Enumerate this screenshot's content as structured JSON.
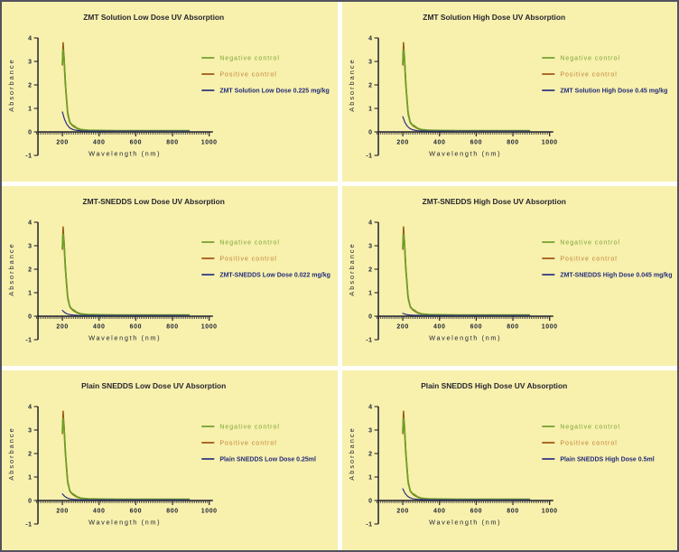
{
  "page": {
    "panel_background": "#f8f0ad",
    "frame_border_color": "#52525e",
    "gap_color": "#ffffff"
  },
  "colors": {
    "axis": "#23232e",
    "tick_text": "#1c2433",
    "title_text": "#26262e",
    "negative_line": "#6f9e28",
    "negative_text": "#7aa636",
    "positive_line": "#9c5210",
    "positive_text": "#c08038",
    "test_line": "#28317e",
    "test_text": "#232d7a"
  },
  "chart_data": [
    {
      "type": "line",
      "title": "ZMT Solution Low Dose UV Absorption",
      "xlabel": "Wavelength (nm)",
      "ylabel": "Absorbance",
      "xlim": [
        60,
        1040
      ],
      "ylim": [
        -1,
        4
      ],
      "x_ticks": [
        200,
        400,
        600,
        800,
        1000
      ],
      "y_ticks": [
        -1,
        0,
        1,
        2,
        3,
        4
      ],
      "grid": false,
      "legend_position": "right",
      "legend": [
        {
          "label": "Negative control",
          "text_color": "#7aa636",
          "line_color": "#6f9e28",
          "bold": false
        },
        {
          "label": "Positive control",
          "text_color": "#c08038",
          "line_color": "#9c5210",
          "bold": false
        },
        {
          "label": "ZMT Solution Low Dose 0.225 mg/kg",
          "text_color": "#232d7a",
          "line_color": "#28317e",
          "bold": true
        }
      ],
      "series": [
        {
          "name": "Positive control",
          "color": "#9c5210",
          "width": 1.5,
          "x": [
            200,
            204,
            210,
            218,
            230,
            242,
            254,
            265,
            283,
            303,
            345,
            410,
            510,
            610,
            710,
            810,
            890
          ],
          "y": [
            2.85,
            3.8,
            3.05,
            1.85,
            0.72,
            0.38,
            0.27,
            0.21,
            0.13,
            0.09,
            0.06,
            0.05,
            0.04,
            0.04,
            0.04,
            0.04,
            0.04
          ]
        },
        {
          "name": "Negative control",
          "color": "#6f9e28",
          "width": 1.8,
          "x": [
            200,
            203,
            208,
            216,
            228,
            240,
            252,
            262,
            280,
            300,
            340,
            400,
            500,
            600,
            700,
            800,
            890
          ],
          "y": [
            2.9,
            3.5,
            3.28,
            2.1,
            0.85,
            0.42,
            0.3,
            0.26,
            0.16,
            0.1,
            0.07,
            0.06,
            0.05,
            0.05,
            0.05,
            0.05,
            0.05
          ]
        },
        {
          "name": "ZMT Solution Low Dose 0.225 mg/kg",
          "color": "#28317e",
          "width": 1.2,
          "x": [
            200,
            212,
            225,
            240,
            258,
            280,
            310,
            360,
            450,
            560,
            680,
            800,
            890
          ],
          "y": [
            0.85,
            0.53,
            0.31,
            0.17,
            0.1,
            0.06,
            0.04,
            0.03,
            0.03,
            0.03,
            0.03,
            0.03,
            0.03
          ]
        }
      ]
    },
    {
      "type": "line",
      "title": "ZMT Solution High Dose UV Absorption",
      "xlabel": "Wavelength (nm)",
      "ylabel": "Absorbance",
      "xlim": [
        60,
        1040
      ],
      "ylim": [
        -1,
        4
      ],
      "x_ticks": [
        200,
        400,
        600,
        800,
        1000
      ],
      "y_ticks": [
        -1,
        0,
        1,
        2,
        3,
        4
      ],
      "grid": false,
      "legend_position": "right",
      "legend": [
        {
          "label": "Negative control",
          "text_color": "#7aa636",
          "line_color": "#6f9e28",
          "bold": false
        },
        {
          "label": "Positive control",
          "text_color": "#c08038",
          "line_color": "#9c5210",
          "bold": false
        },
        {
          "label": "ZMT Solution High Dose 0.45 mg/kg",
          "text_color": "#232d7a",
          "line_color": "#28317e",
          "bold": true
        }
      ],
      "series": [
        {
          "name": "Positive control",
          "color": "#9c5210",
          "width": 1.5,
          "x": [
            200,
            204,
            210,
            218,
            230,
            242,
            254,
            265,
            283,
            303,
            345,
            410,
            510,
            610,
            710,
            810,
            890
          ],
          "y": [
            2.85,
            3.8,
            3.05,
            1.85,
            0.72,
            0.38,
            0.27,
            0.21,
            0.13,
            0.09,
            0.06,
            0.05,
            0.04,
            0.04,
            0.04,
            0.04,
            0.04
          ]
        },
        {
          "name": "Negative control",
          "color": "#6f9e28",
          "width": 1.8,
          "x": [
            200,
            203,
            208,
            216,
            228,
            240,
            252,
            262,
            280,
            300,
            340,
            400,
            500,
            600,
            700,
            800,
            890
          ],
          "y": [
            2.9,
            3.5,
            3.28,
            2.1,
            0.85,
            0.42,
            0.3,
            0.26,
            0.16,
            0.1,
            0.07,
            0.06,
            0.05,
            0.05,
            0.05,
            0.05,
            0.05
          ]
        },
        {
          "name": "ZMT Solution High Dose 0.45 mg/kg",
          "color": "#28317e",
          "width": 1.2,
          "x": [
            200,
            212,
            225,
            240,
            258,
            280,
            310,
            360,
            450,
            560,
            680,
            800,
            890
          ],
          "y": [
            0.65,
            0.4,
            0.24,
            0.14,
            0.08,
            0.05,
            0.04,
            0.03,
            0.03,
            0.03,
            0.03,
            0.03,
            0.03
          ]
        }
      ]
    },
    {
      "type": "line",
      "title": "ZMT-SNEDDS Low Dose UV Absorption",
      "xlabel": "Wavelength (nm)",
      "ylabel": "Absorbance",
      "xlim": [
        60,
        1040
      ],
      "ylim": [
        -1,
        4
      ],
      "x_ticks": [
        200,
        400,
        600,
        800,
        1000
      ],
      "y_ticks": [
        -1,
        0,
        1,
        2,
        3,
        4
      ],
      "grid": false,
      "legend_position": "right",
      "legend": [
        {
          "label": "Negative control",
          "text_color": "#7aa636",
          "line_color": "#6f9e28",
          "bold": false
        },
        {
          "label": "Positive control",
          "text_color": "#c08038",
          "line_color": "#9c5210",
          "bold": false
        },
        {
          "label": "ZMT-SNEDDS Low Dose 0.022 mg/kg",
          "text_color": "#232d7a",
          "line_color": "#28317e",
          "bold": true
        }
      ],
      "series": [
        {
          "name": "Positive control",
          "color": "#9c5210",
          "width": 1.5,
          "x": [
            200,
            204,
            210,
            218,
            230,
            242,
            254,
            265,
            283,
            303,
            345,
            410,
            510,
            610,
            710,
            810,
            890
          ],
          "y": [
            2.85,
            3.8,
            3.05,
            1.85,
            0.72,
            0.38,
            0.27,
            0.21,
            0.13,
            0.09,
            0.06,
            0.05,
            0.04,
            0.04,
            0.04,
            0.04,
            0.04
          ]
        },
        {
          "name": "Negative control",
          "color": "#6f9e28",
          "width": 1.8,
          "x": [
            200,
            203,
            208,
            216,
            228,
            240,
            252,
            262,
            280,
            300,
            340,
            400,
            500,
            600,
            700,
            800,
            890
          ],
          "y": [
            2.9,
            3.5,
            3.28,
            2.1,
            0.85,
            0.42,
            0.3,
            0.26,
            0.16,
            0.1,
            0.07,
            0.06,
            0.05,
            0.05,
            0.05,
            0.05,
            0.05
          ]
        },
        {
          "name": "ZMT-SNEDDS Low Dose 0.022 mg/kg",
          "color": "#28317e",
          "width": 1.2,
          "x": [
            200,
            212,
            225,
            240,
            258,
            280,
            310,
            360,
            450,
            560,
            680,
            800,
            890
          ],
          "y": [
            0.25,
            0.16,
            0.1,
            0.07,
            0.05,
            0.04,
            0.03,
            0.03,
            0.03,
            0.03,
            0.03,
            0.03,
            0.03
          ]
        }
      ]
    },
    {
      "type": "line",
      "title": "ZMT-SNEDDS High Dose UV Absorption",
      "xlabel": "Wavelength (nm)",
      "ylabel": "Absorbance",
      "xlim": [
        60,
        1040
      ],
      "ylim": [
        -1,
        4
      ],
      "x_ticks": [
        200,
        400,
        600,
        800,
        1000
      ],
      "y_ticks": [
        -1,
        0,
        1,
        2,
        3,
        4
      ],
      "grid": false,
      "legend_position": "right",
      "legend": [
        {
          "label": "Negative control",
          "text_color": "#7aa636",
          "line_color": "#6f9e28",
          "bold": false
        },
        {
          "label": "Positive control",
          "text_color": "#c08038",
          "line_color": "#9c5210",
          "bold": false
        },
        {
          "label": "ZMT-SNEDDS High Dose 0.045 mg/kg",
          "text_color": "#232d7a",
          "line_color": "#28317e",
          "bold": true
        }
      ],
      "series": [
        {
          "name": "Positive control",
          "color": "#9c5210",
          "width": 1.5,
          "x": [
            200,
            204,
            210,
            218,
            230,
            242,
            254,
            265,
            283,
            303,
            345,
            410,
            510,
            610,
            710,
            810,
            890
          ],
          "y": [
            2.85,
            3.8,
            3.05,
            1.85,
            0.72,
            0.38,
            0.27,
            0.21,
            0.13,
            0.09,
            0.06,
            0.05,
            0.04,
            0.04,
            0.04,
            0.04,
            0.04
          ]
        },
        {
          "name": "Negative control",
          "color": "#6f9e28",
          "width": 1.8,
          "x": [
            200,
            203,
            208,
            216,
            228,
            240,
            252,
            262,
            280,
            300,
            340,
            400,
            500,
            600,
            700,
            800,
            890
          ],
          "y": [
            2.9,
            3.5,
            3.28,
            2.1,
            0.85,
            0.42,
            0.3,
            0.26,
            0.16,
            0.1,
            0.07,
            0.06,
            0.05,
            0.05,
            0.05,
            0.05,
            0.05
          ]
        },
        {
          "name": "ZMT-SNEDDS High Dose 0.045 mg/kg",
          "color": "#28317e",
          "width": 1.2,
          "x": [
            200,
            212,
            225,
            240,
            258,
            280,
            310,
            360,
            450,
            560,
            680,
            800,
            890
          ],
          "y": [
            0.12,
            0.09,
            0.06,
            0.05,
            0.04,
            0.04,
            0.03,
            0.03,
            0.03,
            0.03,
            0.03,
            0.03,
            0.03
          ]
        }
      ]
    },
    {
      "type": "line",
      "title": "Plain SNEDDS Low Dose UV Absorption",
      "xlabel": "Wavelength (nm)",
      "ylabel": "Absorbance",
      "xlim": [
        60,
        1040
      ],
      "ylim": [
        -1,
        4
      ],
      "x_ticks": [
        200,
        400,
        600,
        800,
        1000
      ],
      "y_ticks": [
        -1,
        0,
        1,
        2,
        3,
        4
      ],
      "grid": false,
      "legend_position": "right",
      "legend": [
        {
          "label": "Negative control",
          "text_color": "#7aa636",
          "line_color": "#6f9e28",
          "bold": false
        },
        {
          "label": "Positive control",
          "text_color": "#c08038",
          "line_color": "#9c5210",
          "bold": false
        },
        {
          "label": "Plain SNEDDS Low Dose 0.25ml",
          "text_color": "#232d7a",
          "line_color": "#28317e",
          "bold": true
        }
      ],
      "series": [
        {
          "name": "Positive control",
          "color": "#9c5210",
          "width": 1.5,
          "x": [
            200,
            204,
            210,
            218,
            230,
            242,
            254,
            265,
            283,
            303,
            345,
            410,
            510,
            610,
            710,
            810,
            890
          ],
          "y": [
            2.85,
            3.8,
            3.05,
            1.85,
            0.72,
            0.38,
            0.27,
            0.21,
            0.13,
            0.09,
            0.06,
            0.05,
            0.04,
            0.04,
            0.04,
            0.04,
            0.04
          ]
        },
        {
          "name": "Negative control",
          "color": "#6f9e28",
          "width": 1.8,
          "x": [
            200,
            203,
            208,
            216,
            228,
            240,
            252,
            262,
            280,
            300,
            340,
            400,
            500,
            600,
            700,
            800,
            890
          ],
          "y": [
            2.9,
            3.5,
            3.28,
            2.1,
            0.85,
            0.42,
            0.3,
            0.26,
            0.16,
            0.1,
            0.07,
            0.06,
            0.05,
            0.05,
            0.05,
            0.05,
            0.05
          ]
        },
        {
          "name": "Plain SNEDDS Low Dose 0.25ml",
          "color": "#28317e",
          "width": 1.2,
          "x": [
            200,
            212,
            225,
            240,
            258,
            280,
            310,
            360,
            450,
            560,
            680,
            800,
            890
          ],
          "y": [
            0.28,
            0.18,
            0.11,
            0.07,
            0.05,
            0.04,
            0.03,
            0.03,
            0.03,
            0.03,
            0.03,
            0.03,
            0.03
          ]
        }
      ]
    },
    {
      "type": "line",
      "title": "Plain SNEDDS High Dose UV Absorption",
      "xlabel": "Wavelength (nm)",
      "ylabel": "Absorbance",
      "xlim": [
        60,
        1040
      ],
      "ylim": [
        -1,
        4
      ],
      "x_ticks": [
        200,
        400,
        600,
        800,
        1000
      ],
      "y_ticks": [
        -1,
        0,
        1,
        2,
        3,
        4
      ],
      "grid": false,
      "legend_position": "right",
      "legend": [
        {
          "label": "Negative control",
          "text_color": "#7aa636",
          "line_color": "#6f9e28",
          "bold": false
        },
        {
          "label": "Positive control",
          "text_color": "#c08038",
          "line_color": "#9c5210",
          "bold": false
        },
        {
          "label": "Plain SNEDDS High Dose 0.5ml",
          "text_color": "#232d7a",
          "line_color": "#28317e",
          "bold": true
        }
      ],
      "series": [
        {
          "name": "Positive control",
          "color": "#9c5210",
          "width": 1.5,
          "x": [
            200,
            204,
            210,
            218,
            230,
            242,
            254,
            265,
            283,
            303,
            345,
            410,
            510,
            610,
            710,
            810,
            890
          ],
          "y": [
            2.85,
            3.8,
            3.05,
            1.85,
            0.72,
            0.38,
            0.27,
            0.21,
            0.13,
            0.09,
            0.06,
            0.05,
            0.04,
            0.04,
            0.04,
            0.04,
            0.04
          ]
        },
        {
          "name": "Negative control",
          "color": "#6f9e28",
          "width": 1.8,
          "x": [
            200,
            203,
            208,
            216,
            228,
            240,
            252,
            262,
            280,
            300,
            340,
            400,
            500,
            600,
            700,
            800,
            890
          ],
          "y": [
            2.9,
            3.5,
            3.28,
            2.1,
            0.85,
            0.42,
            0.3,
            0.26,
            0.16,
            0.1,
            0.07,
            0.06,
            0.05,
            0.05,
            0.05,
            0.05,
            0.05
          ]
        },
        {
          "name": "Plain SNEDDS High Dose 0.5ml",
          "color": "#28317e",
          "width": 1.2,
          "x": [
            200,
            212,
            225,
            240,
            258,
            280,
            310,
            360,
            450,
            560,
            680,
            800,
            890
          ],
          "y": [
            0.5,
            0.31,
            0.19,
            0.11,
            0.07,
            0.05,
            0.04,
            0.03,
            0.03,
            0.03,
            0.03,
            0.03,
            0.03
          ]
        }
      ]
    }
  ]
}
